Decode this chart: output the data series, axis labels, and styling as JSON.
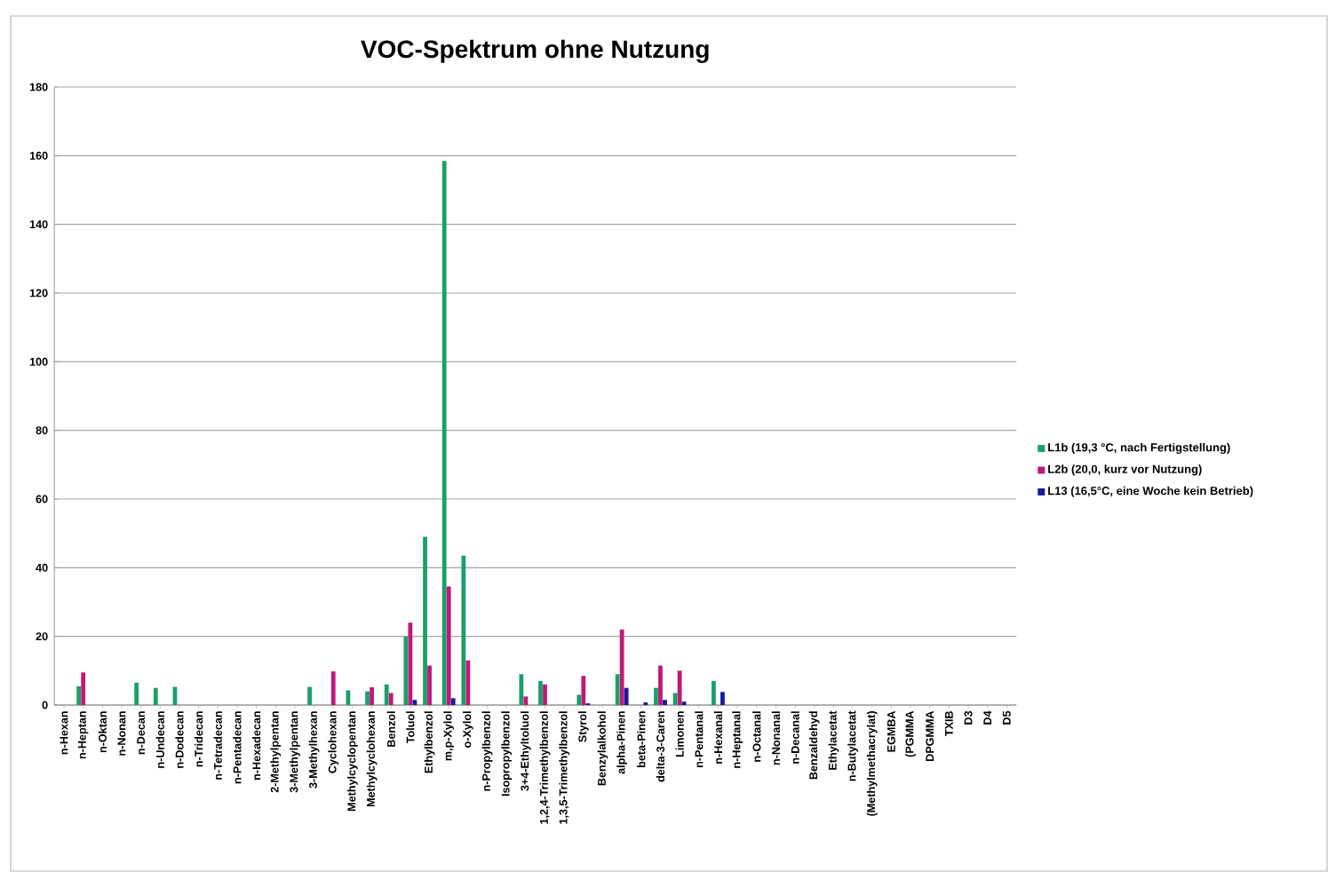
{
  "chart_data": {
    "type": "bar",
    "title": "VOC-Spektrum ohne Nutzung",
    "categories": [
      "n-Hexan",
      "n-Heptan",
      "n-Oktan",
      "n-Nonan",
      "n-Decan",
      "n-Undecan",
      "n-Dodecan",
      "n-Tridecan",
      "n-Tetradecan",
      "n-Pentadecan",
      "n-Hexadecan",
      "2-Methylpentan",
      "3-Methylpentan",
      "3-Methylhexan",
      "Cyclohexan",
      "Methylcyclopentan",
      "Methylcyclohexan",
      "Benzol",
      "Toluol",
      "Ethylbenzol",
      "m,p-Xylol",
      "o-Xylol",
      "n-Propylbenzol",
      "Isopropylbenzol",
      "3+4-Ethyltoluol",
      "1,2,4-Trimethylbenzol",
      "1,3,5-Trimethylbenzol",
      "Styrol",
      "Benzylalkohol",
      "alpha-Pinen",
      "beta-Pinen",
      "delta-3-Caren",
      "Limonen",
      "n-Pentanal",
      "n-Hexanal",
      "n-Heptanal",
      "n-Octanal",
      "n-Nonanal",
      "n-Decanal",
      "Benzaldehyd",
      "Ethylacetat",
      "n-Butylacetat",
      "(Methylmethacrylat)",
      "EGMBA",
      "(PGMMA",
      "DPGMMA",
      "TXIB",
      "D3",
      "D4",
      "D5"
    ],
    "series": [
      {
        "name": "L1b (19,3 °C, nach Fertigstellung)",
        "color": "#1aa068",
        "values": [
          null,
          5.5,
          null,
          null,
          6.5,
          5,
          5.3,
          null,
          null,
          null,
          null,
          null,
          null,
          5.3,
          null,
          4.3,
          4,
          6,
          20,
          49,
          158.5,
          43.5,
          null,
          null,
          9,
          7,
          null,
          3,
          null,
          9,
          null,
          5,
          3.5,
          null,
          7,
          null,
          null,
          null,
          null,
          null,
          null,
          null,
          null,
          null,
          null,
          null,
          null,
          null,
          null,
          null
        ]
      },
      {
        "name": "L2b (20,0, kurz vor Nutzung)",
        "color": "#c0187a",
        "values": [
          null,
          9.5,
          null,
          null,
          null,
          null,
          null,
          null,
          null,
          null,
          null,
          null,
          null,
          null,
          9.8,
          null,
          5.2,
          3.5,
          24,
          11.5,
          34.5,
          13,
          null,
          null,
          2.5,
          6,
          null,
          8.5,
          null,
          22,
          null,
          11.5,
          10,
          null,
          null,
          null,
          null,
          null,
          null,
          null,
          null,
          null,
          null,
          null,
          null,
          null,
          null,
          null,
          null,
          null
        ]
      },
      {
        "name": "L13 (16,5°C, eine Woche kein Betrieb)",
        "color": "#1a1aa0",
        "values": [
          null,
          null,
          null,
          null,
          null,
          null,
          null,
          null,
          null,
          null,
          null,
          null,
          null,
          null,
          null,
          null,
          null,
          null,
          1.5,
          null,
          2,
          null,
          null,
          null,
          null,
          null,
          null,
          0.5,
          null,
          5,
          0.8,
          1.5,
          1,
          null,
          3.8,
          null,
          null,
          null,
          null,
          null,
          null,
          null,
          null,
          null,
          null,
          null,
          null,
          null,
          null,
          null
        ]
      }
    ],
    "ylim": [
      0,
      180
    ],
    "yticks": [
      0,
      20,
      40,
      60,
      80,
      100,
      120,
      140,
      160,
      180
    ],
    "grid": "y",
    "legend": "right"
  }
}
